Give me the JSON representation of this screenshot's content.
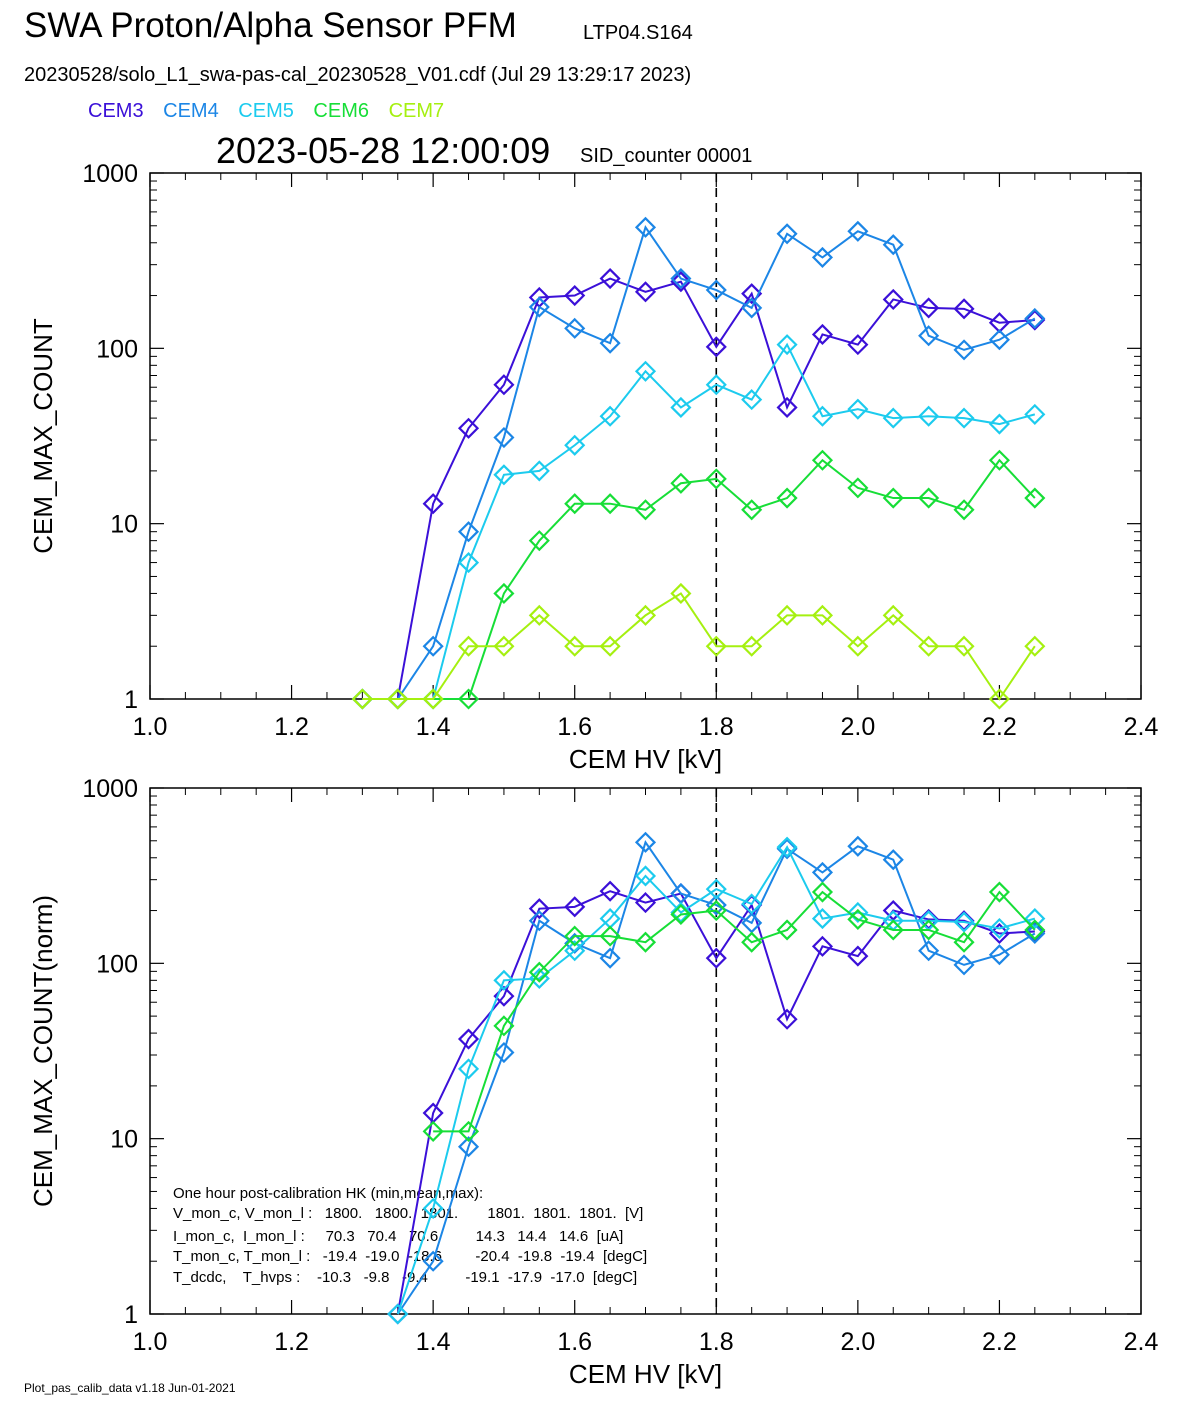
{
  "header": {
    "title": "SWA Proton/Alpha Sensor PFM",
    "run_id": "LTP04.S164",
    "file_line": "20230528/solo_L1_swa-pas-cal_20230528_V01.cdf  (Jul 29 13:29:17 2023)",
    "datetime": "2023-05-28 12:00:09",
    "sid": "SID_counter 00001"
  },
  "legend": [
    {
      "label": "CEM3",
      "color": "#3b10d8"
    },
    {
      "label": "CEM4",
      "color": "#1c86e6"
    },
    {
      "label": "CEM5",
      "color": "#1ccbee"
    },
    {
      "label": "CEM6",
      "color": "#17de37"
    },
    {
      "label": "CEM7",
      "color": "#a5f010"
    }
  ],
  "footer": "Plot_pas_calib_data v1.18 Jun-01-2021",
  "chart_data": [
    {
      "type": "line",
      "xlabel": "CEM HV [kV]",
      "ylabel": "CEM_MAX_COUNT",
      "xlim": [
        1.0,
        2.4
      ],
      "ylim": [
        1,
        1000
      ],
      "yscale": "log",
      "xticks": [
        "1.0",
        "1.2",
        "1.4",
        "1.6",
        "1.8",
        "2.0",
        "2.2",
        "2.4"
      ],
      "yticks": [
        "1",
        "10",
        "100",
        "1000"
      ],
      "marker": "diamond",
      "vline": 1.8,
      "series": [
        {
          "name": "CEM3",
          "color": "#3b10d8",
          "points": [
            [
              1.3,
              1
            ],
            [
              1.35,
              1
            ],
            [
              1.4,
              13
            ],
            [
              1.45,
              35
            ],
            [
              1.5,
              62
            ],
            [
              1.55,
              195
            ],
            [
              1.6,
              200
            ],
            [
              1.65,
              250
            ],
            [
              1.7,
              210
            ],
            [
              1.75,
              240
            ],
            [
              1.8,
              102
            ],
            [
              1.85,
              205
            ],
            [
              1.9,
              46
            ],
            [
              1.95,
              120
            ],
            [
              2.0,
              105
            ],
            [
              2.05,
              190
            ],
            [
              2.1,
              170
            ],
            [
              2.15,
              168
            ],
            [
              2.2,
              140
            ],
            [
              2.25,
              145
            ]
          ]
        },
        {
          "name": "CEM4",
          "color": "#1c86e6",
          "points": [
            [
              1.3,
              1
            ],
            [
              1.35,
              1
            ],
            [
              1.4,
              2
            ],
            [
              1.45,
              9
            ],
            [
              1.5,
              31
            ],
            [
              1.55,
              172
            ],
            [
              1.6,
              130
            ],
            [
              1.65,
              107
            ],
            [
              1.7,
              490
            ],
            [
              1.75,
              250
            ],
            [
              1.8,
              215
            ],
            [
              1.85,
              170
            ],
            [
              1.9,
              450
            ],
            [
              1.95,
              330
            ],
            [
              2.0,
              465
            ],
            [
              2.05,
              390
            ],
            [
              2.1,
              118
            ],
            [
              2.15,
              98
            ],
            [
              2.2,
              112
            ],
            [
              2.25,
              148
            ]
          ]
        },
        {
          "name": "CEM5",
          "color": "#1ccbee",
          "points": [
            [
              1.3,
              1
            ],
            [
              1.35,
              1
            ],
            [
              1.4,
              1
            ],
            [
              1.45,
              6
            ],
            [
              1.5,
              19
            ],
            [
              1.55,
              20
            ],
            [
              1.6,
              28
            ],
            [
              1.65,
              41
            ],
            [
              1.7,
              74
            ],
            [
              1.75,
              46
            ],
            [
              1.8,
              62
            ],
            [
              1.85,
              51
            ],
            [
              1.9,
              105
            ],
            [
              1.95,
              41
            ],
            [
              2.0,
              45
            ],
            [
              2.05,
              40
            ],
            [
              2.1,
              41
            ],
            [
              2.15,
              40
            ],
            [
              2.2,
              37
            ],
            [
              2.25,
              42
            ]
          ]
        },
        {
          "name": "CEM6",
          "color": "#17de37",
          "points": [
            [
              1.3,
              1
            ],
            [
              1.35,
              1
            ],
            [
              1.4,
              1
            ],
            [
              1.45,
              1
            ],
            [
              1.5,
              4
            ],
            [
              1.55,
              8
            ],
            [
              1.6,
              13
            ],
            [
              1.65,
              13
            ],
            [
              1.7,
              12
            ],
            [
              1.75,
              17
            ],
            [
              1.8,
              18
            ],
            [
              1.85,
              12
            ],
            [
              1.9,
              14
            ],
            [
              1.95,
              23
            ],
            [
              2.0,
              16
            ],
            [
              2.05,
              14
            ],
            [
              2.1,
              14
            ],
            [
              2.15,
              12
            ],
            [
              2.2,
              23
            ],
            [
              2.25,
              14
            ]
          ]
        },
        {
          "name": "CEM7",
          "color": "#a5f010",
          "points": [
            [
              1.3,
              1
            ],
            [
              1.35,
              1
            ],
            [
              1.4,
              1
            ],
            [
              1.45,
              2
            ],
            [
              1.5,
              2
            ],
            [
              1.55,
              3
            ],
            [
              1.6,
              2
            ],
            [
              1.65,
              2
            ],
            [
              1.7,
              3
            ],
            [
              1.75,
              4
            ],
            [
              1.8,
              2
            ],
            [
              1.85,
              2
            ],
            [
              1.9,
              3
            ],
            [
              1.95,
              3
            ],
            [
              2.0,
              2
            ],
            [
              2.05,
              3
            ],
            [
              2.1,
              2
            ],
            [
              2.15,
              2
            ],
            [
              2.2,
              1
            ],
            [
              2.25,
              2
            ]
          ]
        }
      ]
    },
    {
      "type": "line",
      "xlabel": "CEM HV [kV]",
      "ylabel": "CEM_MAX_COUNT(norm)",
      "xlim": [
        1.0,
        2.4
      ],
      "ylim": [
        1,
        1000
      ],
      "yscale": "log",
      "xticks": [
        "1.0",
        "1.2",
        "1.4",
        "1.6",
        "1.8",
        "2.0",
        "2.2",
        "2.4"
      ],
      "yticks": [
        "1",
        "10",
        "100",
        "1000"
      ],
      "marker": "diamond",
      "vline": 1.8,
      "series": [
        {
          "name": "CEM3",
          "color": "#3b10d8",
          "points": [
            [
              1.35,
              1
            ],
            [
              1.4,
              14
            ],
            [
              1.45,
              37
            ],
            [
              1.5,
              65
            ],
            [
              1.55,
              205
            ],
            [
              1.6,
              210
            ],
            [
              1.65,
              258
            ],
            [
              1.7,
              222
            ],
            [
              1.75,
              250
            ],
            [
              1.8,
              107
            ],
            [
              1.85,
              215
            ],
            [
              1.9,
              48
            ],
            [
              1.95,
              125
            ],
            [
              2.0,
              110
            ],
            [
              2.05,
              200
            ],
            [
              2.1,
              178
            ],
            [
              2.15,
              175
            ],
            [
              2.2,
              148
            ],
            [
              2.25,
              152
            ]
          ]
        },
        {
          "name": "CEM4",
          "color": "#1c86e6",
          "points": [
            [
              1.35,
              1
            ],
            [
              1.4,
              2
            ],
            [
              1.45,
              9
            ],
            [
              1.5,
              31
            ],
            [
              1.55,
              175
            ],
            [
              1.6,
              130
            ],
            [
              1.65,
              107
            ],
            [
              1.7,
              490
            ],
            [
              1.75,
              250
            ],
            [
              1.8,
              215
            ],
            [
              1.85,
              170
            ],
            [
              1.9,
              450
            ],
            [
              1.95,
              330
            ],
            [
              2.0,
              465
            ],
            [
              2.05,
              390
            ],
            [
              2.1,
              118
            ],
            [
              2.15,
              98
            ],
            [
              2.2,
              112
            ],
            [
              2.25,
              148
            ]
          ]
        },
        {
          "name": "CEM5",
          "color": "#1ccbee",
          "points": [
            [
              1.35,
              1
            ],
            [
              1.4,
              4
            ],
            [
              1.45,
              25
            ],
            [
              1.5,
              80
            ],
            [
              1.55,
              82
            ],
            [
              1.6,
              118
            ],
            [
              1.65,
              180
            ],
            [
              1.7,
              315
            ],
            [
              1.75,
              195
            ],
            [
              1.8,
              265
            ],
            [
              1.85,
              218
            ],
            [
              1.9,
              460
            ],
            [
              1.95,
              180
            ],
            [
              2.0,
              195
            ],
            [
              2.05,
              175
            ],
            [
              2.1,
              175
            ],
            [
              2.15,
              172
            ],
            [
              2.2,
              158
            ],
            [
              2.25,
              180
            ]
          ]
        },
        {
          "name": "CEM6",
          "color": "#17de37",
          "points": [
            [
              1.4,
              11
            ],
            [
              1.45,
              11
            ],
            [
              1.5,
              44
            ],
            [
              1.55,
              89
            ],
            [
              1.6,
              143
            ],
            [
              1.65,
              143
            ],
            [
              1.7,
              132
            ],
            [
              1.75,
              190
            ],
            [
              1.8,
              200
            ],
            [
              1.85,
              132
            ],
            [
              1.9,
              155
            ],
            [
              1.95,
              255
            ],
            [
              2.0,
              178
            ],
            [
              2.05,
              155
            ],
            [
              2.1,
              155
            ],
            [
              2.15,
              132
            ],
            [
              2.2,
              255
            ],
            [
              2.25,
              155
            ]
          ]
        }
      ],
      "annotation": {
        "lines": [
          "One hour post-calibration HK (min,mean,max):",
          "V_mon_c, V_mon_l :   1800.   1800.  1801.       1801.  1801.  1801.  [V]",
          "I_mon_c,  I_mon_l :     70.3   70.4   70.6         14.3   14.4   14.6  [uA]",
          "T_mon_c, T_mon_l :   -19.4  -19.0  -18.6        -20.4  -19.8  -19.4  [degC]",
          "T_dcdc,    T_hvps :    -10.3   -9.8   -9.4         -19.1  -17.9  -17.0  [degC]"
        ]
      }
    }
  ]
}
